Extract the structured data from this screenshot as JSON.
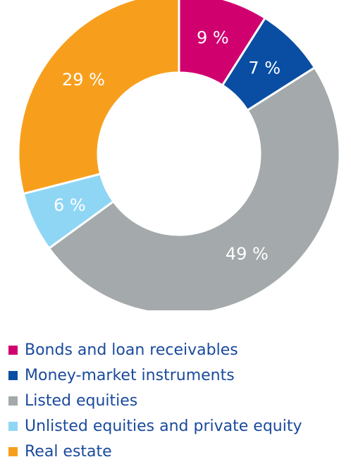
{
  "chart_data": {
    "type": "pie",
    "title": "",
    "categories": [
      "Bonds and loan receivables",
      "Money-market instruments",
      "Listed equities",
      "Unlisted equities and private equity",
      "Real estate"
    ],
    "values": [
      9,
      7,
      49,
      6,
      29
    ],
    "labels": [
      "9 %",
      "7 %",
      "49 %",
      "6 %",
      "29 %"
    ],
    "colors": [
      "#d0006f",
      "#0a4ea3",
      "#a4a9ab",
      "#8fd6f5",
      "#f79f1d"
    ],
    "legend_position": "bottom",
    "donut": true
  }
}
